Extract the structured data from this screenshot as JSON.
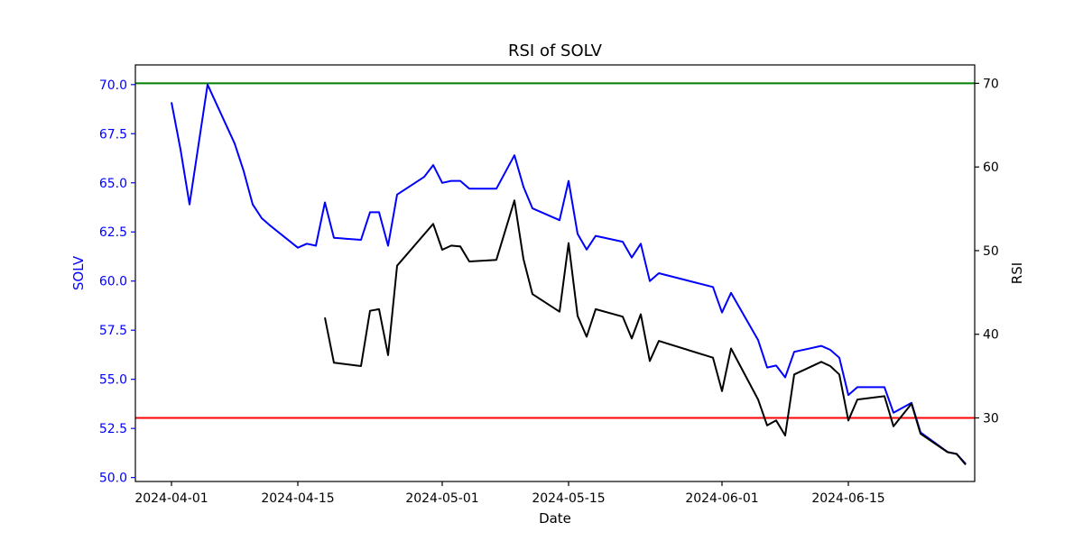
{
  "chart_data": {
    "type": "line",
    "title": "RSI of SOLV",
    "xlabel": "Date",
    "ylabel_left": "SOLV",
    "ylabel_right": "RSI",
    "ylim_left": [
      49.8,
      71.0
    ],
    "ylim_right": [
      22.4,
      72.2
    ],
    "xlim": [
      "2024-03-28",
      "2024-06-29"
    ],
    "x_ticks": [
      "2024-04-01",
      "2024-04-15",
      "2024-05-01",
      "2024-05-15",
      "2024-06-01",
      "2024-06-15"
    ],
    "y_ticks_left": [
      "50.0",
      "52.5",
      "55.0",
      "57.5",
      "60.0",
      "62.5",
      "65.0",
      "67.5",
      "70.0"
    ],
    "y_ticks_right": [
      "30",
      "40",
      "50",
      "60",
      "70"
    ],
    "grid": false,
    "colors": {
      "price": "#0000ff",
      "rsi": "#000000",
      "overbought": "#008000",
      "oversold": "#ff0000",
      "left_axis": "#0000ff"
    },
    "reference_lines": [
      {
        "axis": "right",
        "value": 70,
        "color": "#008000"
      },
      {
        "axis": "right",
        "value": 30,
        "color": "#ff0000"
      }
    ],
    "price_series": {
      "axis": "left",
      "points": [
        [
          "2024-04-01",
          69.1
        ],
        [
          "2024-04-02",
          66.7
        ],
        [
          "2024-04-03",
          63.9
        ],
        [
          "2024-04-05",
          70.0
        ],
        [
          "2024-04-08",
          67.0
        ],
        [
          "2024-04-09",
          65.6
        ],
        [
          "2024-04-10",
          63.9
        ],
        [
          "2024-04-11",
          63.2
        ],
        [
          "2024-04-12",
          62.8
        ],
        [
          "2024-04-15",
          61.7
        ],
        [
          "2024-04-16",
          61.9
        ],
        [
          "2024-04-17",
          61.8
        ],
        [
          "2024-04-18",
          64.0
        ],
        [
          "2024-04-19",
          62.2
        ],
        [
          "2024-04-22",
          62.1
        ],
        [
          "2024-04-23",
          63.5
        ],
        [
          "2024-04-24",
          63.5
        ],
        [
          "2024-04-25",
          61.8
        ],
        [
          "2024-04-26",
          64.4
        ],
        [
          "2024-04-29",
          65.3
        ],
        [
          "2024-04-30",
          65.9
        ],
        [
          "2024-05-01",
          65.0
        ],
        [
          "2024-05-02",
          65.1
        ],
        [
          "2024-05-03",
          65.1
        ],
        [
          "2024-05-04",
          64.7
        ],
        [
          "2024-05-07",
          64.7
        ],
        [
          "2024-05-09",
          66.4
        ],
        [
          "2024-05-10",
          64.8
        ],
        [
          "2024-05-11",
          63.7
        ],
        [
          "2024-05-14",
          63.1
        ],
        [
          "2024-05-15",
          65.1
        ],
        [
          "2024-05-16",
          62.4
        ],
        [
          "2024-05-17",
          61.6
        ],
        [
          "2024-05-18",
          62.3
        ],
        [
          "2024-05-21",
          62.0
        ],
        [
          "2024-05-22",
          61.2
        ],
        [
          "2024-05-23",
          61.9
        ],
        [
          "2024-05-24",
          60.0
        ],
        [
          "2024-05-25",
          60.4
        ],
        [
          "2024-05-31",
          59.7
        ],
        [
          "2024-06-01",
          58.4
        ],
        [
          "2024-06-02",
          59.4
        ],
        [
          "2024-06-05",
          57.0
        ],
        [
          "2024-06-06",
          55.6
        ],
        [
          "2024-06-07",
          55.7
        ],
        [
          "2024-06-08",
          55.1
        ],
        [
          "2024-06-09",
          56.4
        ],
        [
          "2024-06-12",
          56.7
        ],
        [
          "2024-06-13",
          56.5
        ],
        [
          "2024-06-14",
          56.1
        ],
        [
          "2024-06-15",
          54.2
        ],
        [
          "2024-06-16",
          54.6
        ],
        [
          "2024-06-19",
          54.6
        ],
        [
          "2024-06-20",
          53.3
        ],
        [
          "2024-06-22",
          53.8
        ],
        [
          "2024-06-23",
          52.3
        ],
        [
          "2024-06-26",
          51.3
        ],
        [
          "2024-06-27",
          51.2
        ],
        [
          "2024-06-28",
          50.7
        ]
      ]
    },
    "rsi_series": {
      "axis": "right",
      "points": [
        [
          "2024-04-18",
          42.0
        ],
        [
          "2024-04-19",
          36.6
        ],
        [
          "2024-04-22",
          36.2
        ],
        [
          "2024-04-23",
          42.8
        ],
        [
          "2024-04-24",
          43.0
        ],
        [
          "2024-04-25",
          37.5
        ],
        [
          "2024-04-26",
          48.2
        ],
        [
          "2024-04-30",
          53.2
        ],
        [
          "2024-05-01",
          50.1
        ],
        [
          "2024-05-02",
          50.6
        ],
        [
          "2024-05-03",
          50.5
        ],
        [
          "2024-05-04",
          48.7
        ],
        [
          "2024-05-07",
          48.9
        ],
        [
          "2024-05-09",
          56.0
        ],
        [
          "2024-05-10",
          49.0
        ],
        [
          "2024-05-11",
          44.8
        ],
        [
          "2024-05-14",
          42.7
        ],
        [
          "2024-05-15",
          50.9
        ],
        [
          "2024-05-16",
          42.2
        ],
        [
          "2024-05-17",
          39.7
        ],
        [
          "2024-05-18",
          43.0
        ],
        [
          "2024-05-21",
          42.1
        ],
        [
          "2024-05-22",
          39.5
        ],
        [
          "2024-05-23",
          42.4
        ],
        [
          "2024-05-24",
          36.8
        ],
        [
          "2024-05-25",
          39.2
        ],
        [
          "2024-05-31",
          37.2
        ],
        [
          "2024-06-01",
          33.2
        ],
        [
          "2024-06-02",
          38.3
        ],
        [
          "2024-06-05",
          32.2
        ],
        [
          "2024-06-06",
          29.1
        ],
        [
          "2024-06-07",
          29.7
        ],
        [
          "2024-06-08",
          27.9
        ],
        [
          "2024-06-09",
          35.2
        ],
        [
          "2024-06-12",
          36.7
        ],
        [
          "2024-06-13",
          36.2
        ],
        [
          "2024-06-14",
          35.2
        ],
        [
          "2024-06-15",
          29.7
        ],
        [
          "2024-06-16",
          32.2
        ],
        [
          "2024-06-19",
          32.6
        ],
        [
          "2024-06-20",
          29.0
        ],
        [
          "2024-06-22",
          31.7
        ],
        [
          "2024-06-23",
          28.1
        ],
        [
          "2024-06-26",
          25.9
        ],
        [
          "2024-06-27",
          25.7
        ],
        [
          "2024-06-28",
          24.4
        ]
      ]
    }
  }
}
